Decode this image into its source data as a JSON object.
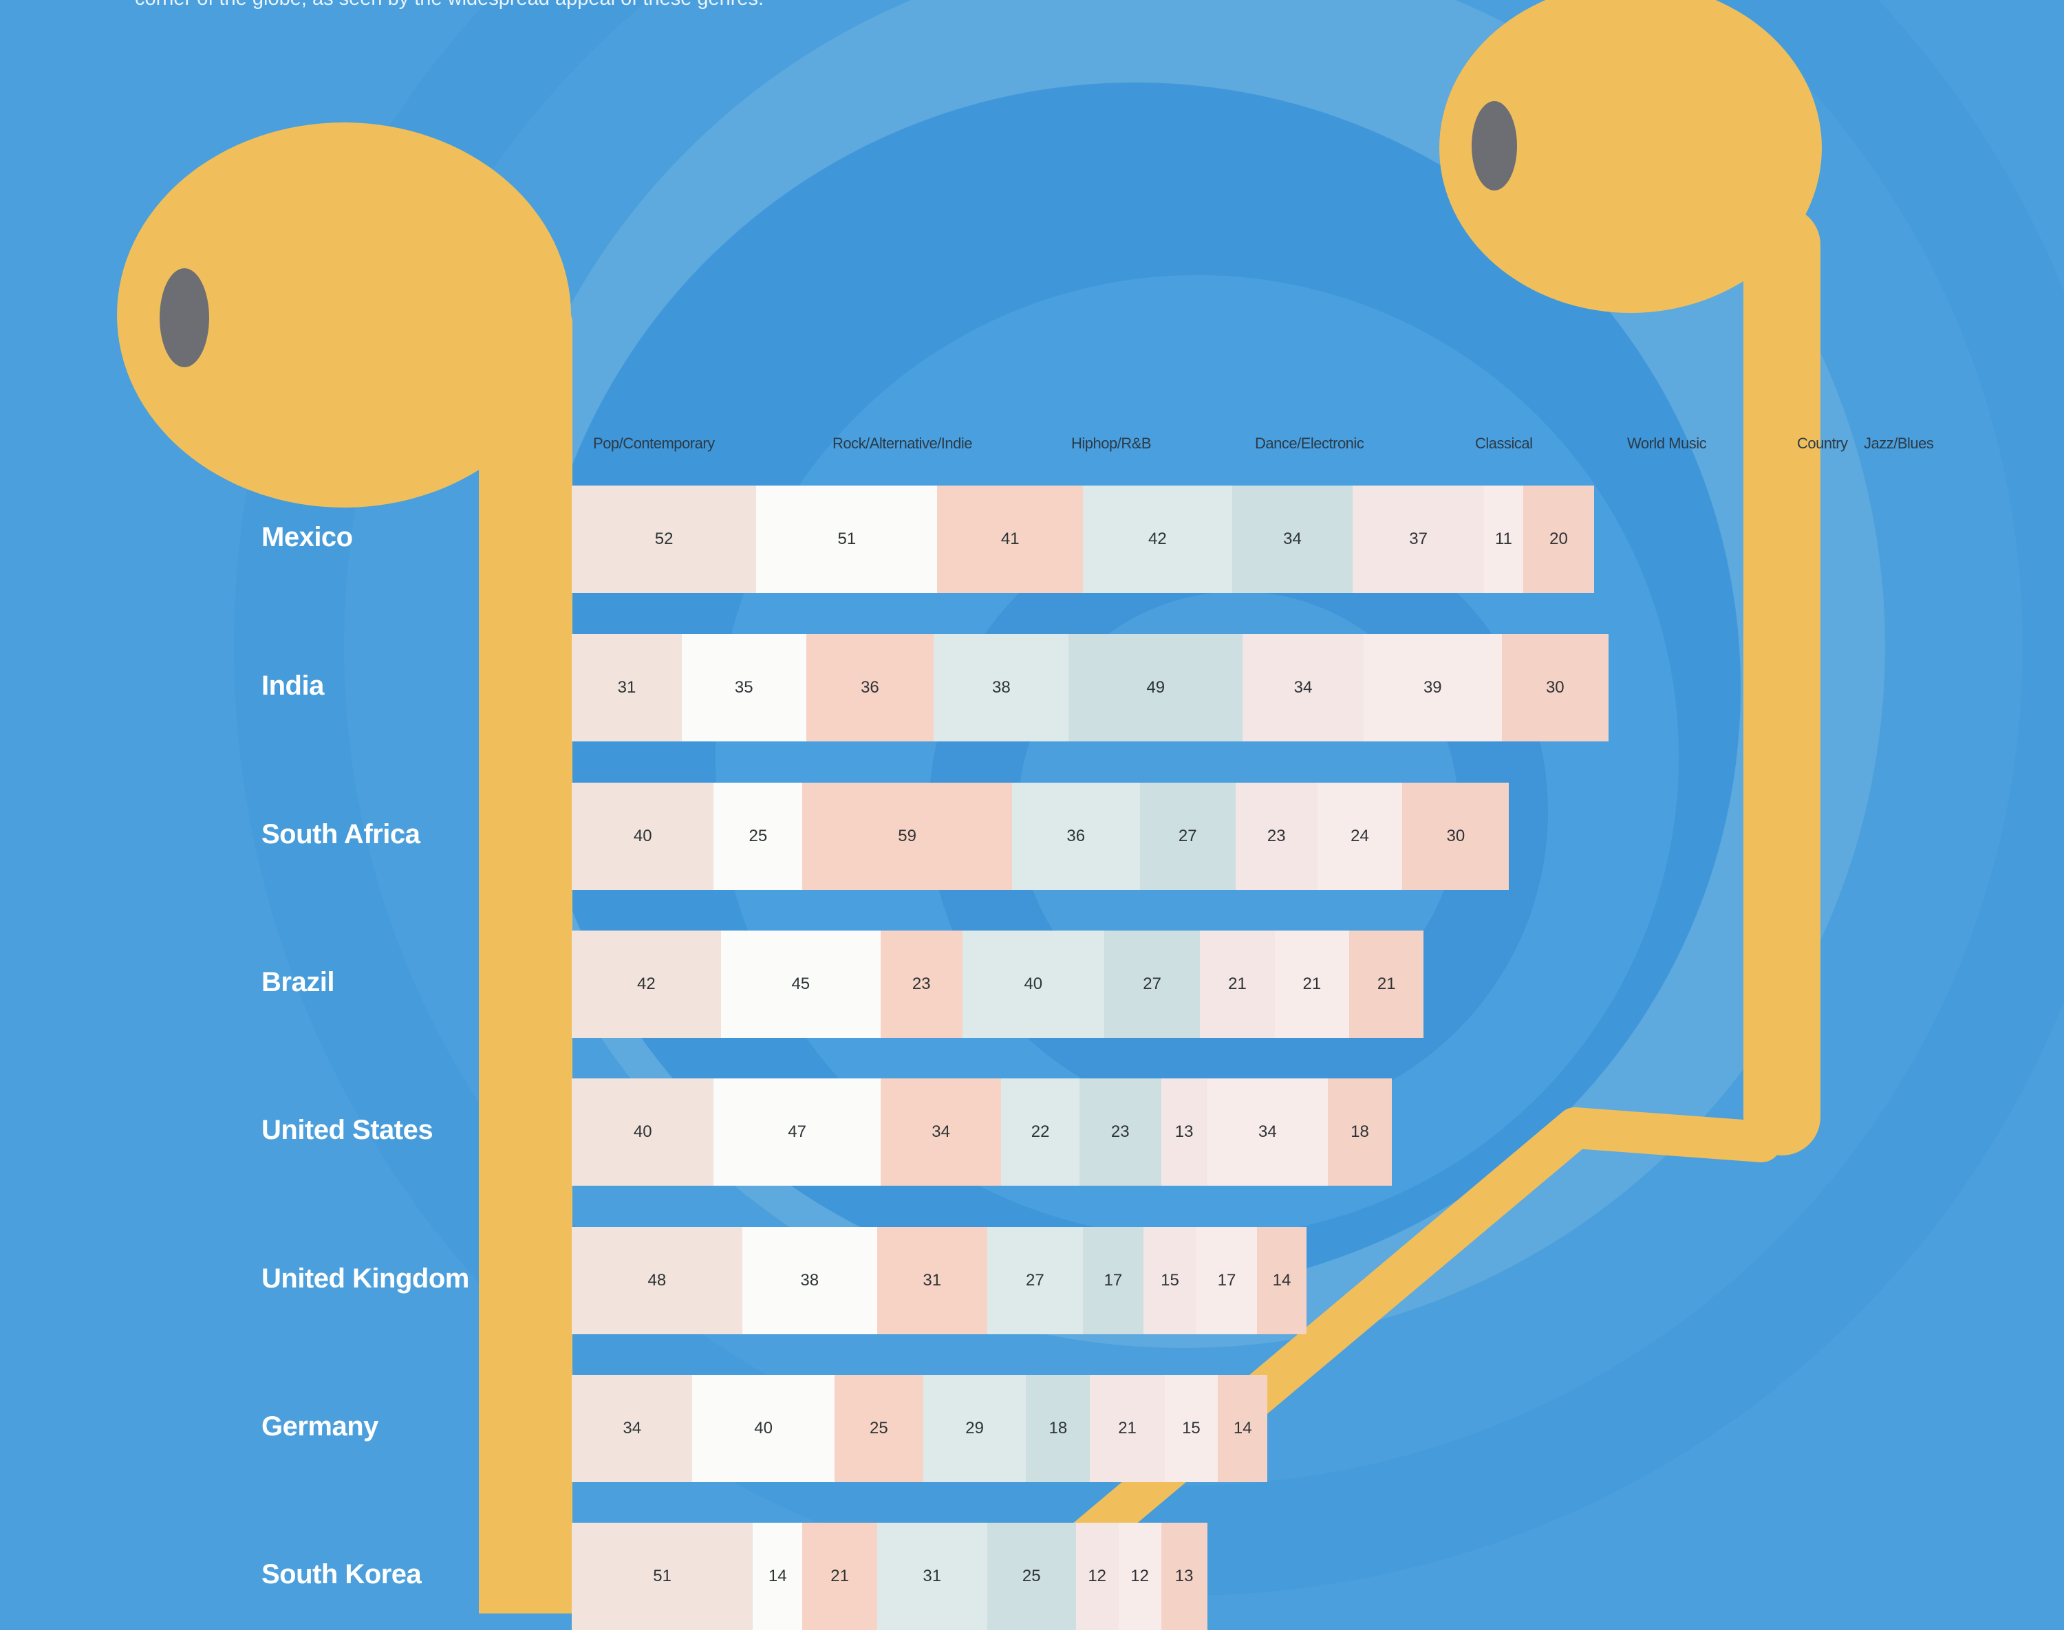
{
  "intro_text": "corner of the globe, as seen by the widespread appeal of these genres.",
  "colors": {
    "background": "#4a9fdc",
    "earbud": "#f0bf5c",
    "earbud_hole": "#6c6e73",
    "genres": [
      "#f2e4dc",
      "#fbfbfa",
      "#f7d3c5",
      "#deeaea",
      "#cddfe0",
      "#f5e6e6",
      "#f8ecea",
      "#f5d2c6"
    ]
  },
  "chart_data": {
    "type": "bar",
    "stacked": true,
    "orientation": "horizontal",
    "genres": [
      "Pop/Contemporary",
      "Rock/Alternative/Indie",
      "Hiphop/R&B",
      "Dance/Electronic",
      "Classical",
      "World Music",
      "Country",
      "Jazz/Blues"
    ],
    "countries": [
      {
        "name": "Mexico",
        "values": [
          52,
          51,
          41,
          42,
          34,
          37,
          11,
          20
        ]
      },
      {
        "name": "India",
        "values": [
          31,
          35,
          36,
          38,
          49,
          34,
          39,
          30
        ]
      },
      {
        "name": "South Africa",
        "values": [
          40,
          25,
          59,
          36,
          27,
          23,
          24,
          30
        ]
      },
      {
        "name": "Brazil",
        "values": [
          42,
          45,
          23,
          40,
          27,
          21,
          21,
          21
        ]
      },
      {
        "name": "United States",
        "values": [
          40,
          47,
          34,
          22,
          23,
          13,
          34,
          18
        ]
      },
      {
        "name": "United Kingdom",
        "values": [
          48,
          38,
          31,
          27,
          17,
          15,
          17,
          14
        ]
      },
      {
        "name": "Germany",
        "values": [
          34,
          40,
          25,
          29,
          18,
          21,
          15,
          14
        ]
      },
      {
        "name": "South Korea",
        "values": [
          51,
          14,
          21,
          31,
          25,
          12,
          12,
          13
        ]
      }
    ]
  }
}
